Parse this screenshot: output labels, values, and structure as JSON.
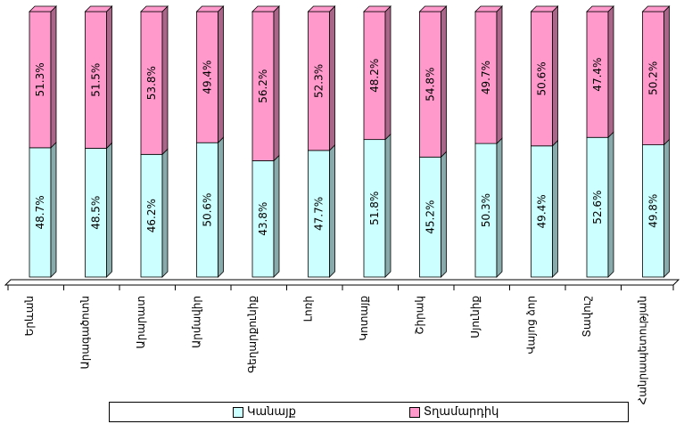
{
  "chart_data": {
    "type": "bar",
    "stacked": true,
    "percent": true,
    "categories": [
      "Երևան",
      "Արագածոտն",
      "Արարատ",
      "Արմավիր",
      "Գեղարքունիք",
      "Լոռի",
      "Կոտայք",
      "Շիրակ",
      "Սյունիք",
      "Վայոց ձոր",
      "Տավուշ",
      "Հանրապետության"
    ],
    "series": [
      {
        "name": "Կանայք",
        "color": "#ccffff",
        "values": [
          48.7,
          48.5,
          46.2,
          50.6,
          43.8,
          47.7,
          51.8,
          45.2,
          50.3,
          49.4,
          52.6,
          49.8
        ],
        "labels": [
          "48.7%",
          "48.5%",
          "46.2%",
          "50.6%",
          "43.8%",
          "47.7%",
          "51.8%",
          "45.2%",
          "50.3%",
          "49.4%",
          "52.6%",
          "49.8%"
        ]
      },
      {
        "name": "Տղամարդիկ",
        "color": "#ff99cc",
        "values": [
          51.3,
          51.5,
          53.8,
          49.4,
          56.2,
          52.3,
          48.2,
          54.8,
          49.7,
          50.6,
          47.4,
          50.2
        ],
        "labels": [
          "51.3%",
          "51.5%",
          "53.8%",
          "49.4%",
          "56.2%",
          "52.3%",
          "48.2%",
          "54.8%",
          "49.7%",
          "50.6%",
          "47.4%",
          "50.2%"
        ]
      }
    ],
    "ylim": [
      0,
      100
    ],
    "legend_position": "bottom",
    "grid": false
  },
  "legend": {
    "women_label": "Կանայք",
    "men_label": "Տղամարդիկ"
  }
}
